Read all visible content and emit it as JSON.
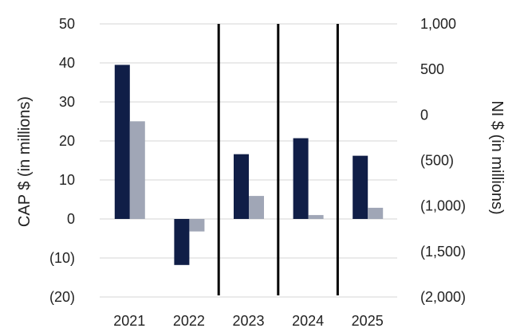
{
  "chart_data": {
    "type": "bar",
    "categories": [
      "2021",
      "2022",
      "2023",
      "2024",
      "2025"
    ],
    "series": [
      {
        "name": "",
        "axis": "left",
        "color": "#101e47",
        "values": [
          39.5,
          -11.8,
          16.6,
          20.7,
          16.2
        ]
      },
      {
        "name": "",
        "axis": "right",
        "color": "#a0a6b6",
        "values": [
          -70,
          -1280,
          -890,
          -1100,
          -1020
        ]
      }
    ],
    "ylabel": "CAP $  (in millions)",
    "y2label": "NI $ (in millions)",
    "ylim": [
      -20,
      50
    ],
    "y2lim": [
      -2000,
      1000
    ],
    "y_ticks": [
      "(20)",
      "(10)",
      "0",
      "10",
      "20",
      "30",
      "40",
      "50"
    ],
    "y2_ticks": [
      "(2,000)",
      "(1,500)",
      "(1,000)",
      "(500)",
      "0",
      "500",
      "1,000"
    ],
    "separators_before": [
      "2023",
      "2024",
      "2025"
    ],
    "grid": true
  }
}
